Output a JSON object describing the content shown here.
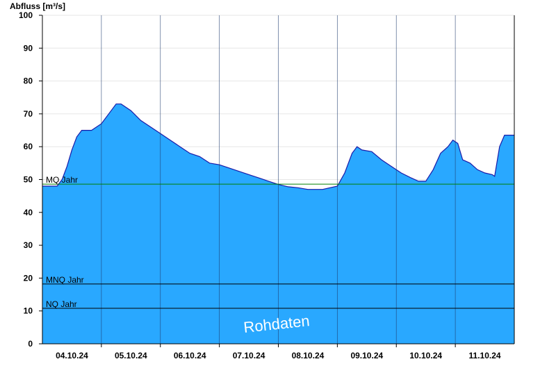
{
  "chart_data": {
    "type": "area",
    "ylabel": "Abfluss [m³/s]",
    "ylim": [
      0,
      100
    ],
    "yticks": [
      0,
      10,
      20,
      30,
      40,
      50,
      60,
      70,
      80,
      90,
      100
    ],
    "xlim": [
      "2024-10-03T18:00",
      "2024-10-11T18:00"
    ],
    "xtick_labels": [
      {
        "label": "04.10.24",
        "at": "2024-10-04T06:00"
      },
      {
        "label": "05.10.24",
        "at": "2024-10-05T06:00"
      },
      {
        "label": "06.10.24",
        "at": "2024-10-06T06:00"
      },
      {
        "label": "07.10.24",
        "at": "2024-10-07T06:00"
      },
      {
        "label": "08.10.24",
        "at": "2024-10-08T06:00"
      },
      {
        "label": "09.10.24",
        "at": "2024-10-09T06:00"
      },
      {
        "label": "10.10.24",
        "at": "2024-10-10T06:00"
      },
      {
        "label": "11.10.24",
        "at": "2024-10-11T06:00"
      }
    ],
    "day_gridlines": [
      "2024-10-04T18:00",
      "2024-10-05T18:00",
      "2024-10-06T18:00",
      "2024-10-07T18:00",
      "2024-10-08T18:00",
      "2024-10-09T18:00",
      "2024-10-10T18:00"
    ],
    "series": [
      {
        "color": "#29a8ff",
        "points": [
          [
            "2024-10-03T18:00",
            48.0
          ],
          [
            "2024-10-04T00:00",
            48.0
          ],
          [
            "2024-10-04T02:00",
            50.0
          ],
          [
            "2024-10-04T04:00",
            54.0
          ],
          [
            "2024-10-04T06:00",
            59.0
          ],
          [
            "2024-10-04T08:00",
            63.0
          ],
          [
            "2024-10-04T10:00",
            65.0
          ],
          [
            "2024-10-04T14:00",
            65.0
          ],
          [
            "2024-10-04T18:00",
            67.0
          ],
          [
            "2024-10-04T22:00",
            71.0
          ],
          [
            "2024-10-05T00:00",
            73.0
          ],
          [
            "2024-10-05T02:00",
            73.0
          ],
          [
            "2024-10-05T06:00",
            71.0
          ],
          [
            "2024-10-05T10:00",
            68.0
          ],
          [
            "2024-10-05T14:00",
            66.0
          ],
          [
            "2024-10-05T18:00",
            64.0
          ],
          [
            "2024-10-05T22:00",
            62.0
          ],
          [
            "2024-10-06T02:00",
            60.0
          ],
          [
            "2024-10-06T06:00",
            58.0
          ],
          [
            "2024-10-06T10:00",
            57.0
          ],
          [
            "2024-10-06T14:00",
            55.0
          ],
          [
            "2024-10-06T18:00",
            54.5
          ],
          [
            "2024-10-06T22:00",
            53.5
          ],
          [
            "2024-10-07T02:00",
            52.5
          ],
          [
            "2024-10-07T06:00",
            51.5
          ],
          [
            "2024-10-07T10:00",
            50.5
          ],
          [
            "2024-10-07T14:00",
            49.5
          ],
          [
            "2024-10-07T18:00",
            48.5
          ],
          [
            "2024-10-07T22:00",
            47.8
          ],
          [
            "2024-10-08T02:00",
            47.5
          ],
          [
            "2024-10-08T06:00",
            47.0
          ],
          [
            "2024-10-08T12:00",
            47.0
          ],
          [
            "2024-10-08T18:00",
            48.0
          ],
          [
            "2024-10-08T21:00",
            52.0
          ],
          [
            "2024-10-09T00:00",
            58.0
          ],
          [
            "2024-10-09T02:00",
            60.0
          ],
          [
            "2024-10-09T04:00",
            59.0
          ],
          [
            "2024-10-09T08:00",
            58.5
          ],
          [
            "2024-10-09T12:00",
            56.0
          ],
          [
            "2024-10-09T16:00",
            54.0
          ],
          [
            "2024-10-09T20:00",
            52.0
          ],
          [
            "2024-10-10T00:00",
            50.5
          ],
          [
            "2024-10-10T03:00",
            49.5
          ],
          [
            "2024-10-10T06:00",
            49.5
          ],
          [
            "2024-10-10T09:00",
            53.0
          ],
          [
            "2024-10-10T12:00",
            58.0
          ],
          [
            "2024-10-10T15:00",
            60.0
          ],
          [
            "2024-10-10T17:00",
            62.0
          ],
          [
            "2024-10-10T19:00",
            61.0
          ],
          [
            "2024-10-10T21:00",
            56.0
          ],
          [
            "2024-10-11T00:00",
            55.0
          ],
          [
            "2024-10-11T03:00",
            53.0
          ],
          [
            "2024-10-11T06:00",
            52.0
          ],
          [
            "2024-10-11T09:00",
            51.5
          ],
          [
            "2024-10-11T10:00",
            51.0
          ],
          [
            "2024-10-11T12:00",
            60.0
          ],
          [
            "2024-10-11T14:00",
            63.5
          ],
          [
            "2024-10-11T18:00",
            63.5
          ]
        ]
      }
    ],
    "reference_lines": [
      {
        "label": "MQ Jahr",
        "value": 48.6,
        "color": "#008000"
      },
      {
        "label": "MNQ Jahr",
        "value": 18.2,
        "color": "#000000"
      },
      {
        "label": "NQ Jahr",
        "value": 10.8,
        "color": "#000000"
      }
    ],
    "watermark": "Rohdaten",
    "grid": {
      "horizontal": true,
      "vertical_day_separators": true
    },
    "colors": {
      "area": "#29a8ff",
      "outline": "#1a1aa8",
      "grid": "#e6e6e6"
    }
  }
}
